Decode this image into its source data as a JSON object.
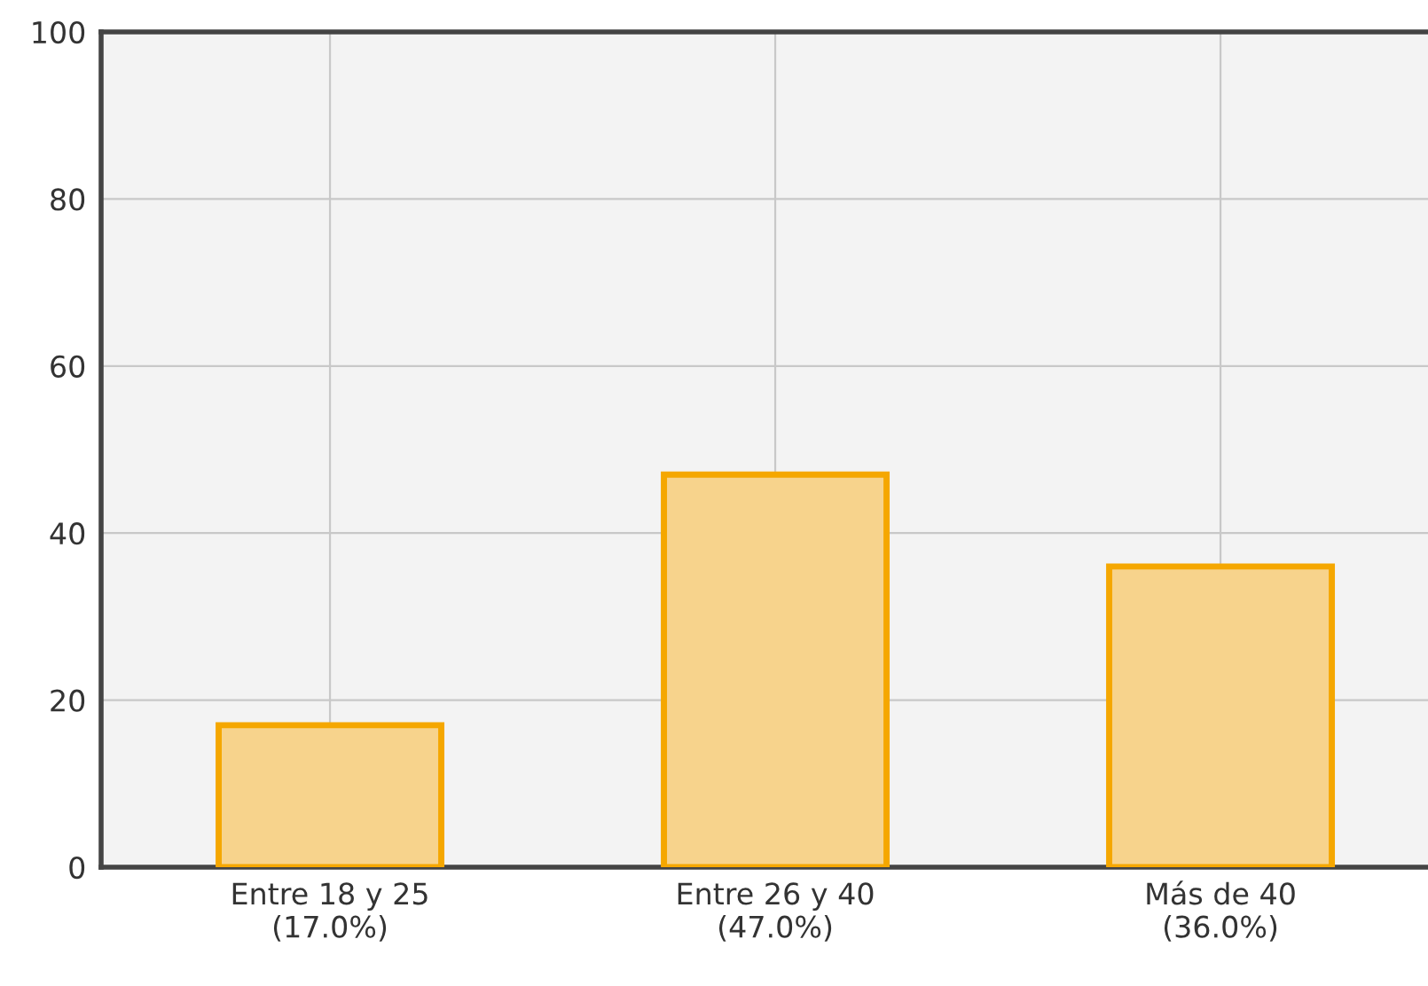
{
  "chart_data": {
    "type": "bar",
    "categories": [
      "Entre 18 y 25\n(17.0%)",
      "Entre 26 y 40\n(47.0%)",
      "Más de 40\n(36.0%)"
    ],
    "values": [
      17,
      47,
      36
    ],
    "color": "#f7d38c",
    "ylim": [
      0,
      100
    ],
    "yticks": [
      0,
      20,
      40,
      60,
      80,
      100
    ],
    "grid": true
  }
}
